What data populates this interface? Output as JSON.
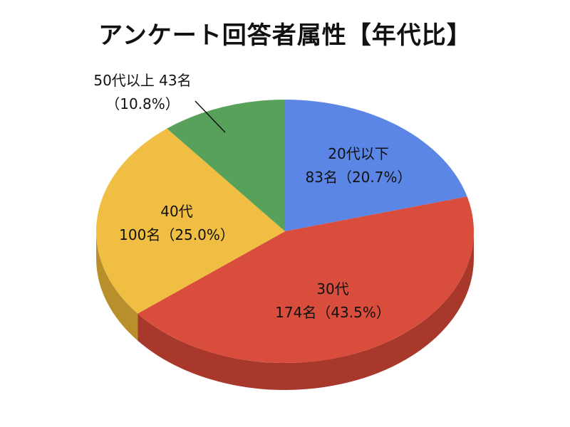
{
  "chart_data": {
    "type": "pie",
    "title": "アンケート回答者属性【年代比】",
    "unit": "名",
    "slices": [
      {
        "name": "20代以下",
        "value": 83,
        "percent": "20.7%",
        "color": "#5b86e5",
        "side_color": "#3f64b8",
        "label_lines": [
          "20代以下",
          "83名（20.7%）"
        ]
      },
      {
        "name": "30代",
        "value": 174,
        "percent": "43.5%",
        "color": "#d94d3c",
        "side_color": "#a8382c",
        "label_lines": [
          "30代",
          "174名（43.5%）"
        ]
      },
      {
        "name": "40代",
        "value": 100,
        "percent": "25.0%",
        "color": "#efbe42",
        "side_color": "#b98f2b",
        "label_lines": [
          "40代",
          "100名（25.0%）"
        ]
      },
      {
        "name": "50代以上",
        "value": 43,
        "percent": "10.8%",
        "color": "#58a15a",
        "side_color": "#3f7a41",
        "label_lines": [
          "50代以上 43名",
          "（10.8%）"
        ]
      }
    ]
  }
}
